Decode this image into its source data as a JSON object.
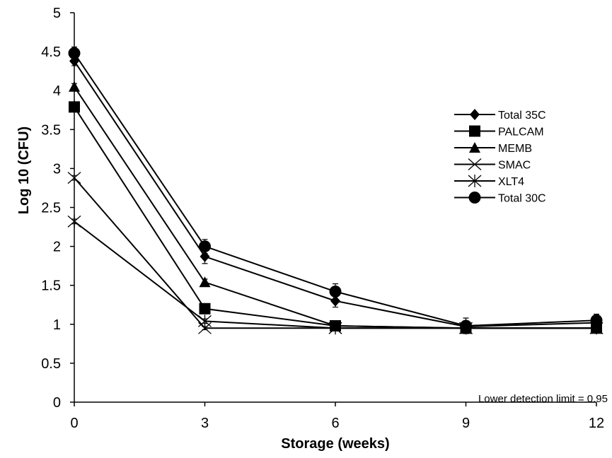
{
  "chart_data": {
    "type": "line",
    "xlabel": "Storage (weeks)",
    "ylabel": "Log 10 (CFU)",
    "x": [
      0,
      3,
      6,
      9,
      12
    ],
    "xticks": [
      "0",
      "3",
      "6",
      "9",
      "12"
    ],
    "yticks": [
      "0",
      "0.5",
      "1",
      "1.5",
      "2",
      "2.5",
      "3",
      "3.5",
      "4",
      "4.5",
      "5"
    ],
    "xlim": [
      0,
      12
    ],
    "ylim": [
      0,
      5
    ],
    "grid": false,
    "legend_position": "right",
    "annotation": "Lower detection limit = 0.95",
    "series": [
      {
        "name": "Total 35C",
        "marker": "diamond",
        "values": [
          4.38,
          1.87,
          1.3,
          0.97,
          1.02
        ],
        "errors": [
          0.06,
          0.09,
          0.08,
          0.05,
          0.05
        ]
      },
      {
        "name": "PALCAM",
        "marker": "square",
        "values": [
          3.79,
          1.2,
          0.98,
          0.95,
          0.95
        ],
        "errors": [
          0.04,
          0.04,
          0.03,
          0.02,
          0.02
        ]
      },
      {
        "name": "MEMB",
        "marker": "triangle",
        "values": [
          4.05,
          1.54,
          0.98,
          0.95,
          0.95
        ],
        "errors": [
          0.04,
          0.04,
          0.03,
          0.02,
          0.02
        ]
      },
      {
        "name": "SMAC",
        "marker": "x",
        "values": [
          2.88,
          0.95,
          0.95,
          0.95,
          0.95
        ],
        "errors": [
          0.03,
          0.02,
          0.02,
          0.02,
          0.02
        ]
      },
      {
        "name": "XLT4",
        "marker": "star",
        "values": [
          2.32,
          1.04,
          0.95,
          0.95,
          0.95
        ],
        "errors": [
          0.03,
          0.03,
          0.02,
          0.02,
          0.02
        ]
      },
      {
        "name": "Total 30C",
        "marker": "circle",
        "values": [
          4.48,
          2.0,
          1.42,
          0.98,
          1.05
        ],
        "errors": [
          0.08,
          0.09,
          0.1,
          0.1,
          0.08
        ]
      }
    ]
  }
}
